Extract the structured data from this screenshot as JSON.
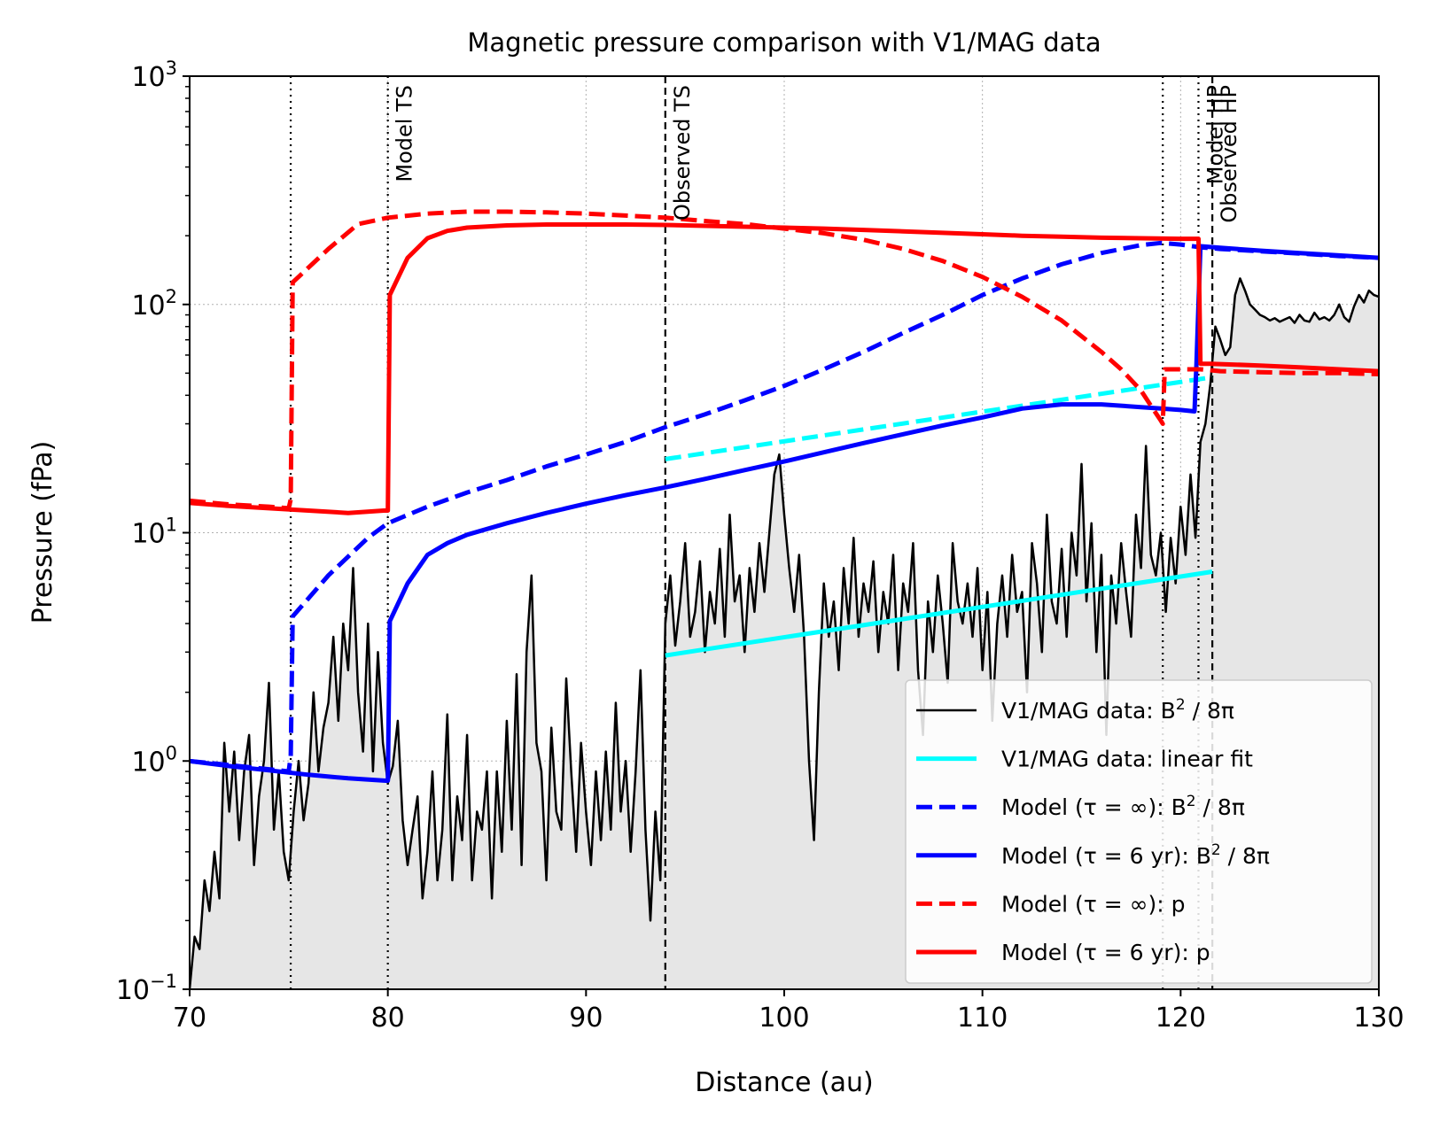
{
  "chart_data": {
    "type": "line",
    "title": "Magnetic pressure comparison with V1/MAG data",
    "xlabel": "Distance (au)",
    "ylabel": "Pressure (fPa)",
    "xlim": [
      70,
      130
    ],
    "ylim": [
      0.1,
      1000
    ],
    "yscale": "log",
    "grid": true,
    "legend_position": "lower-right",
    "x_ticks": [
      {
        "value": 70,
        "label": "70"
      },
      {
        "value": 80,
        "label": "80"
      },
      {
        "value": 90,
        "label": "90"
      },
      {
        "value": 100,
        "label": "100"
      },
      {
        "value": 110,
        "label": "110"
      },
      {
        "value": 120,
        "label": "120"
      },
      {
        "value": 130,
        "label": "130"
      }
    ],
    "y_ticks": [
      {
        "value": 0.1,
        "base": "10",
        "exp": "−1"
      },
      {
        "value": 1,
        "base": "10",
        "exp": "0"
      },
      {
        "value": 10,
        "base": "10",
        "exp": "1"
      },
      {
        "value": 100,
        "base": "10",
        "exp": "2"
      },
      {
        "value": 1000,
        "base": "10",
        "exp": "3"
      }
    ],
    "vertical_lines": [
      {
        "x": 75.1,
        "style": "dotted",
        "label": ""
      },
      {
        "x": 80.0,
        "style": "dotted",
        "label": "Model TS"
      },
      {
        "x": 94.0,
        "style": "dashed",
        "label": "Observed TS"
      },
      {
        "x": 119.1,
        "style": "dotted",
        "label": ""
      },
      {
        "x": 120.9,
        "style": "dotted",
        "label": "Model HP"
      },
      {
        "x": 121.6,
        "style": "dashed",
        "label": "Observed HP"
      }
    ],
    "series": [
      {
        "name": "V1/MAG data: B² / 8π",
        "legend_main": "V1/MAG data: B",
        "legend_sup": "2",
        "legend_tail": " / 8π",
        "color": "#000000",
        "style": "solid",
        "width": 2.5,
        "fill": "#e6e6e6",
        "x": [
          70,
          70.25,
          70.5,
          70.75,
          71,
          71.25,
          71.5,
          71.75,
          72,
          72.25,
          72.5,
          72.75,
          73,
          73.25,
          73.5,
          73.75,
          74,
          74.25,
          74.5,
          74.75,
          75,
          75.25,
          75.5,
          75.75,
          76,
          76.25,
          76.5,
          76.75,
          77,
          77.25,
          77.5,
          77.75,
          78,
          78.25,
          78.5,
          78.75,
          79,
          79.25,
          79.5,
          79.75,
          80,
          80.25,
          80.5,
          80.75,
          81,
          81.25,
          81.5,
          81.75,
          82,
          82.25,
          82.5,
          82.75,
          83,
          83.25,
          83.5,
          83.75,
          84,
          84.25,
          84.5,
          84.75,
          85,
          85.25,
          85.5,
          85.75,
          86,
          86.25,
          86.5,
          86.75,
          87,
          87.25,
          87.5,
          87.75,
          88,
          88.25,
          88.5,
          88.75,
          89,
          89.25,
          89.5,
          89.75,
          90,
          90.25,
          90.5,
          90.75,
          91,
          91.25,
          91.5,
          91.75,
          92,
          92.25,
          92.5,
          92.75,
          93,
          93.25,
          93.5,
          93.75,
          94,
          94.25,
          94.5,
          94.75,
          95,
          95.25,
          95.5,
          95.75,
          96,
          96.25,
          96.5,
          96.75,
          97,
          97.25,
          97.5,
          97.75,
          98,
          98.25,
          98.5,
          98.75,
          99,
          99.25,
          99.5,
          99.75,
          100,
          100.25,
          100.5,
          100.75,
          101,
          101.25,
          101.5,
          101.75,
          102,
          102.25,
          102.5,
          102.75,
          103,
          103.25,
          103.5,
          103.75,
          104,
          104.25,
          104.5,
          104.75,
          105,
          105.25,
          105.5,
          105.75,
          106,
          106.25,
          106.5,
          106.75,
          107,
          107.25,
          107.5,
          107.75,
          108,
          108.25,
          108.5,
          108.75,
          109,
          109.25,
          109.5,
          109.75,
          110,
          110.25,
          110.5,
          110.75,
          111,
          111.25,
          111.5,
          111.75,
          112,
          112.25,
          112.5,
          112.75,
          113,
          113.25,
          113.5,
          113.75,
          114,
          114.25,
          114.5,
          114.75,
          115,
          115.25,
          115.5,
          115.75,
          116,
          116.25,
          116.5,
          116.75,
          117,
          117.25,
          117.5,
          117.75,
          118,
          118.25,
          118.5,
          118.75,
          119,
          119.25,
          119.5,
          119.75,
          120,
          120.25,
          120.5,
          120.75,
          121,
          121.25,
          121.5,
          121.75,
          122,
          122.25,
          122.5,
          122.75,
          123,
          123.25,
          123.5,
          123.75,
          124,
          124.25,
          124.5,
          124.75,
          125,
          125.25,
          125.5,
          125.75,
          126,
          126.25,
          126.5,
          126.75,
          127,
          127.25,
          127.5,
          127.75,
          128,
          128.25,
          128.5,
          128.75,
          129,
          129.25,
          129.5,
          129.75,
          130
        ],
        "y": [
          0.1,
          0.17,
          0.15,
          0.3,
          0.22,
          0.4,
          0.25,
          1.2,
          0.6,
          1.1,
          0.45,
          0.9,
          1.3,
          0.35,
          0.7,
          1.0,
          2.2,
          0.5,
          0.9,
          0.4,
          0.3,
          0.6,
          1.0,
          0.55,
          0.8,
          2.0,
          0.9,
          1.4,
          1.8,
          3.5,
          1.5,
          4.0,
          2.5,
          7.0,
          2.0,
          1.1,
          4.0,
          0.9,
          3.0,
          1.2,
          0.8,
          0.95,
          1.5,
          0.55,
          0.35,
          0.5,
          0.7,
          0.25,
          0.4,
          0.9,
          0.3,
          0.5,
          1.6,
          0.3,
          0.7,
          0.45,
          1.3,
          0.3,
          0.6,
          0.5,
          0.9,
          0.25,
          0.9,
          0.4,
          1.5,
          0.5,
          2.4,
          0.35,
          3.0,
          6.5,
          1.2,
          0.9,
          0.3,
          1.4,
          0.6,
          0.5,
          2.3,
          0.9,
          0.4,
          1.2,
          0.6,
          0.35,
          0.9,
          0.45,
          1.1,
          0.5,
          1.8,
          0.6,
          1.0,
          0.4,
          0.9,
          2.5,
          0.5,
          0.2,
          0.6,
          0.3,
          4.0,
          6.5,
          3.2,
          5.0,
          9.0,
          3.5,
          4.5,
          7.5,
          3.0,
          5.5,
          4.0,
          8.5,
          3.5,
          12.0,
          5.0,
          6.5,
          3.0,
          7.0,
          4.5,
          9.0,
          5.5,
          10.0,
          18.0,
          22.0,
          12.0,
          7.0,
          4.5,
          8.0,
          3.5,
          1.0,
          0.45,
          2.0,
          6.0,
          3.5,
          5.0,
          2.5,
          7.0,
          4.0,
          9.5,
          3.5,
          6.0,
          4.5,
          7.5,
          3.0,
          5.5,
          4.0,
          8.0,
          2.5,
          6.0,
          4.5,
          9.0,
          2.5,
          1.3,
          5.0,
          3.0,
          6.5,
          4.0,
          2.2,
          9.0,
          5.0,
          4.0,
          6.0,
          3.5,
          7.0,
          2.5,
          5.5,
          1.5,
          4.0,
          6.5,
          3.5,
          8.0,
          4.5,
          5.5,
          2.0,
          9.0,
          6.0,
          3.0,
          12.0,
          5.0,
          4.0,
          8.5,
          3.5,
          10.0,
          6.5,
          20.0,
          5.0,
          11.0,
          3.0,
          8.0,
          1.3,
          6.5,
          4.0,
          9.0,
          5.5,
          3.5,
          12.0,
          7.0,
          24.0,
          8.0,
          6.5,
          10.0,
          4.5,
          9.5,
          6.0,
          13.0,
          8.0,
          18.0,
          9.5,
          25.0,
          30.0,
          45.0,
          80.0,
          70.0,
          60.0,
          65.0,
          110.0,
          130.0,
          115.0,
          100.0,
          95.0,
          90.0,
          88.0,
          85.0,
          87.0,
          84.0,
          86.0,
          88.0,
          83.0,
          90.0,
          85.0,
          84.0,
          92.0,
          86.0,
          88.0,
          85.0,
          90.0,
          100.0,
          88.0,
          84.0,
          98.0,
          110.0,
          102.0,
          115.0,
          110.0,
          108.0
        ]
      },
      {
        "name": "V1/MAG data: linear fit",
        "legend_main": "V1/MAG data: linear fit",
        "legend_sup": "",
        "legend_tail": "",
        "color": "#00ffff",
        "style": "solid",
        "width": 5,
        "x": [
          94,
          121.6
        ],
        "y": [
          2.9,
          6.75
        ]
      },
      {
        "name": "V1/MAG data: linear fit (upper)",
        "in_legend": false,
        "color": "#00ffff",
        "style": "dashed",
        "width": 5,
        "x": [
          94,
          121.6
        ],
        "y": [
          21,
          48
        ]
      },
      {
        "name": "Model (τ = ∞): B² / 8π",
        "legend_main": "Model (τ = ∞): B",
        "legend_sup": "2",
        "legend_tail": " / 8π",
        "color": "#0000ff",
        "style": "dashed",
        "width": 5,
        "x": [
          70,
          72,
          74,
          75,
          75.1,
          75.2,
          77,
          79,
          80,
          82,
          84,
          86,
          88,
          90,
          92,
          94,
          96,
          98,
          100,
          102,
          104,
          106,
          108,
          110,
          112,
          114,
          116,
          118,
          119,
          120,
          121,
          122,
          124,
          126,
          128,
          130
        ],
        "y": [
          1.0,
          0.96,
          0.92,
          0.9,
          1.05,
          4.3,
          6.5,
          9.5,
          11.0,
          13.0,
          15.0,
          17.0,
          19.5,
          22.0,
          25.0,
          29.0,
          33.0,
          38.0,
          44.0,
          52.0,
          62.0,
          75.0,
          90.0,
          110.0,
          130.0,
          150.0,
          168.0,
          182.0,
          186.0,
          183.0,
          178.0,
          175.0,
          171.0,
          167.0,
          163.0,
          160.0
        ]
      },
      {
        "name": "Model (τ = 6 yr): B² / 8π",
        "legend_main": "Model (τ = 6 yr): B",
        "legend_sup": "2",
        "legend_tail": " / 8π",
        "color": "#0000ff",
        "style": "solid",
        "width": 5,
        "x": [
          70,
          72,
          74,
          76,
          78,
          79.9,
          80.0,
          80.1,
          81,
          82,
          83,
          84,
          86,
          88,
          90,
          92,
          94,
          96,
          98,
          100,
          102,
          104,
          106,
          108,
          110,
          112,
          114,
          116,
          118,
          119,
          120,
          120.7,
          120.8,
          121,
          122,
          124,
          126,
          128,
          130
        ],
        "y": [
          1.0,
          0.95,
          0.91,
          0.87,
          0.84,
          0.82,
          0.82,
          4.1,
          6.0,
          8.0,
          9.0,
          9.8,
          11.0,
          12.2,
          13.4,
          14.6,
          15.8,
          17.2,
          18.8,
          20.5,
          22.5,
          24.7,
          27.0,
          29.5,
          32.0,
          35.0,
          36.5,
          36.5,
          35.5,
          35.0,
          34.5,
          34.0,
          55.0,
          180.0,
          177.0,
          172.0,
          168.0,
          164.0,
          160.0
        ]
      },
      {
        "name": "Model (τ = ∞): p",
        "legend_main": "Model (τ = ∞): p",
        "legend_sup": "",
        "legend_tail": "",
        "color": "#ff0000",
        "style": "dashed",
        "width": 5,
        "x": [
          70,
          72,
          74,
          75.0,
          75.1,
          75.2,
          77,
          78.5,
          80,
          82,
          84,
          86,
          88,
          90,
          92,
          94,
          96,
          98,
          100,
          102,
          104,
          106,
          108,
          110,
          112,
          114,
          116,
          117,
          118,
          118.5,
          119.0,
          119.1,
          119.2,
          121,
          122,
          124,
          126,
          128,
          130
        ],
        "y": [
          13.8,
          13.3,
          13.0,
          12.8,
          14.0,
          125,
          175,
          225,
          240,
          250,
          255,
          255,
          253,
          250,
          245,
          240,
          232,
          225,
          215,
          205,
          192,
          175,
          155,
          132,
          108,
          85,
          62,
          52,
          42,
          36,
          31,
          30,
          52,
          52,
          51,
          50.5,
          50,
          50,
          49.5
        ]
      },
      {
        "name": "Model (τ = 6 yr): p",
        "legend_main": "Model (τ = 6 yr): p",
        "legend_sup": "",
        "legend_tail": "",
        "color": "#ff0000",
        "style": "solid",
        "width": 5,
        "x": [
          70,
          72,
          74,
          76,
          78,
          79.8,
          80.0,
          80.1,
          81,
          82,
          83,
          84,
          86,
          88,
          90,
          92,
          94,
          96,
          98,
          100,
          102,
          104,
          106,
          108,
          110,
          112,
          114,
          116,
          118,
          120,
          120.9,
          121.0,
          121.5,
          124,
          126,
          128,
          130
        ],
        "y": [
          13.5,
          13.1,
          12.8,
          12.5,
          12.2,
          12.5,
          12.5,
          110,
          160,
          195,
          210,
          217,
          222,
          224,
          224,
          224,
          223,
          221,
          219,
          217,
          215,
          212,
          209,
          206,
          203,
          200,
          198,
          196,
          195,
          194,
          194,
          55,
          55,
          54,
          53,
          52,
          51
        ]
      }
    ]
  }
}
